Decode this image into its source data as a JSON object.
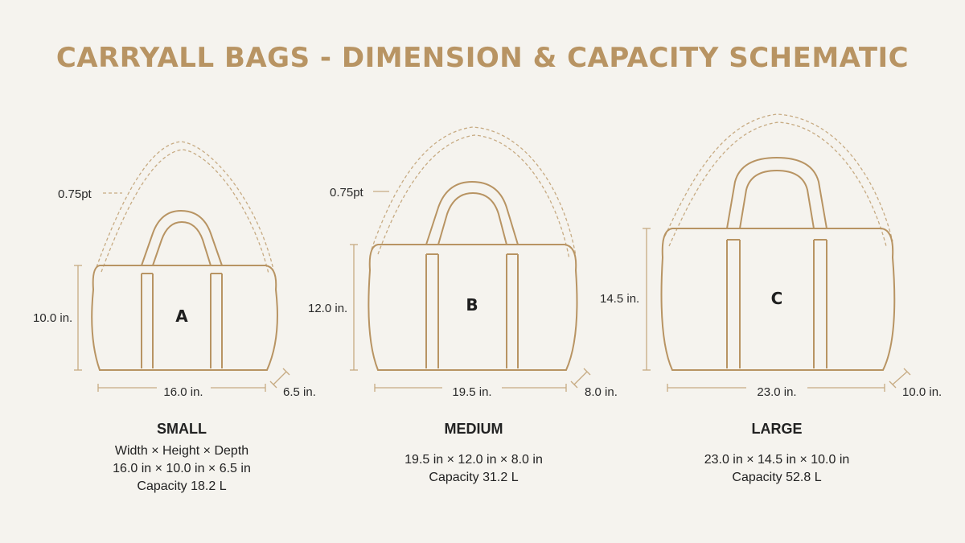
{
  "title": "CARRYALL BAGS - DIMENSION & CAPACITY SCHEMATIC",
  "colors": {
    "title": "#b89463",
    "bag_outline": "#b89463",
    "dimension_line": "#c7ab83",
    "background": "#f5f3ee"
  },
  "bags": [
    {
      "letter": "A",
      "strap_label": "0.75pt",
      "height_label": "10.0 in.",
      "width_label": "16.0 in.",
      "depth_label": "6.5 in.",
      "name": "SMALL",
      "spec_header": "Width × Height × Depth",
      "dimensions": "16.0 in × 10.0 in × 6.5 in",
      "capacity": "Capacity 18.2 L"
    },
    {
      "letter": "B",
      "strap_label": "0.75pt",
      "height_label": "12.0 in.",
      "width_label": "19.5 in.",
      "depth_label": "8.0 in.",
      "name": "MEDIUM",
      "dimensions": "19.5 in × 12.0 in × 8.0 in",
      "capacity": "Capacity 31.2 L"
    },
    {
      "letter": "C",
      "height_label": "14.5 in.",
      "width_label": "23.0 in.",
      "depth_label": "10.0 in.",
      "name": "LARGE",
      "dimensions": "23.0 in × 14.5 in × 10.0 in",
      "capacity": "Capacity 52.8 L"
    }
  ]
}
